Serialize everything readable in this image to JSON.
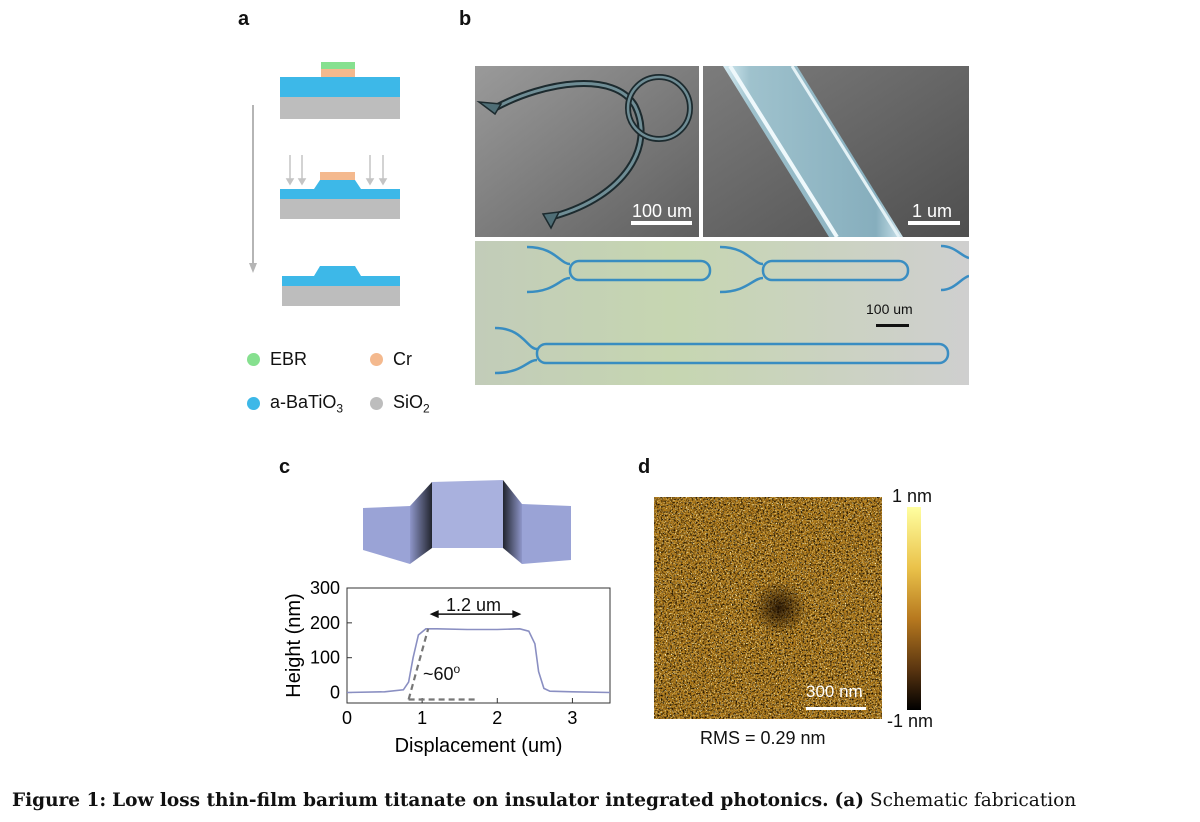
{
  "panels": {
    "a": "a",
    "b": "b",
    "c": "c",
    "d": "d"
  },
  "legend": {
    "ebr": {
      "label": "EBR",
      "color": "#86e08f"
    },
    "cr": {
      "label": "Cr",
      "color": "#f4b98e"
    },
    "batio": {
      "label_main": "a-BaTiO",
      "label_sub": "3",
      "color": "#3db8e8"
    },
    "sio": {
      "label_main": "SiO",
      "label_sub": "2",
      "color": "#bdbdbd"
    }
  },
  "panel_b": {
    "sem1_scale": "100 um",
    "sem2_scale": "1 um",
    "optical_scale": "100 um"
  },
  "panel_c": {
    "annotation_width": "1.2 um",
    "annotation_angle": "~60",
    "annotation_angle_sup": "o",
    "chart_data": {
      "type": "line",
      "xlabel": "Displacement (um)",
      "ylabel": "Height (nm)",
      "xlim": [
        0,
        3.5
      ],
      "ylim": [
        -30,
        300
      ],
      "xticks": [
        "0",
        "1",
        "2",
        "3"
      ],
      "yticks": [
        "0",
        "100",
        "200",
        "300"
      ],
      "x": [
        0,
        0.5,
        0.75,
        0.82,
        0.88,
        0.95,
        1.05,
        1.2,
        1.6,
        2.0,
        2.3,
        2.42,
        2.5,
        2.55,
        2.62,
        2.7,
        3.0,
        3.5
      ],
      "y": [
        0,
        2,
        8,
        30,
        100,
        165,
        183,
        183,
        181,
        181,
        183,
        176,
        140,
        60,
        12,
        4,
        2,
        0
      ]
    }
  },
  "panel_d": {
    "scale": "300 nm",
    "colorbar_max": "1 nm",
    "colorbar_min": "-1 nm",
    "rms": "RMS = 0.29 nm"
  },
  "caption": {
    "figure_label": "Figure 1:",
    "title": "Low loss thin-film barium titanate on insulator integrated photonics.",
    "panel_ref": "(a)",
    "text": "Schematic fabrication"
  }
}
